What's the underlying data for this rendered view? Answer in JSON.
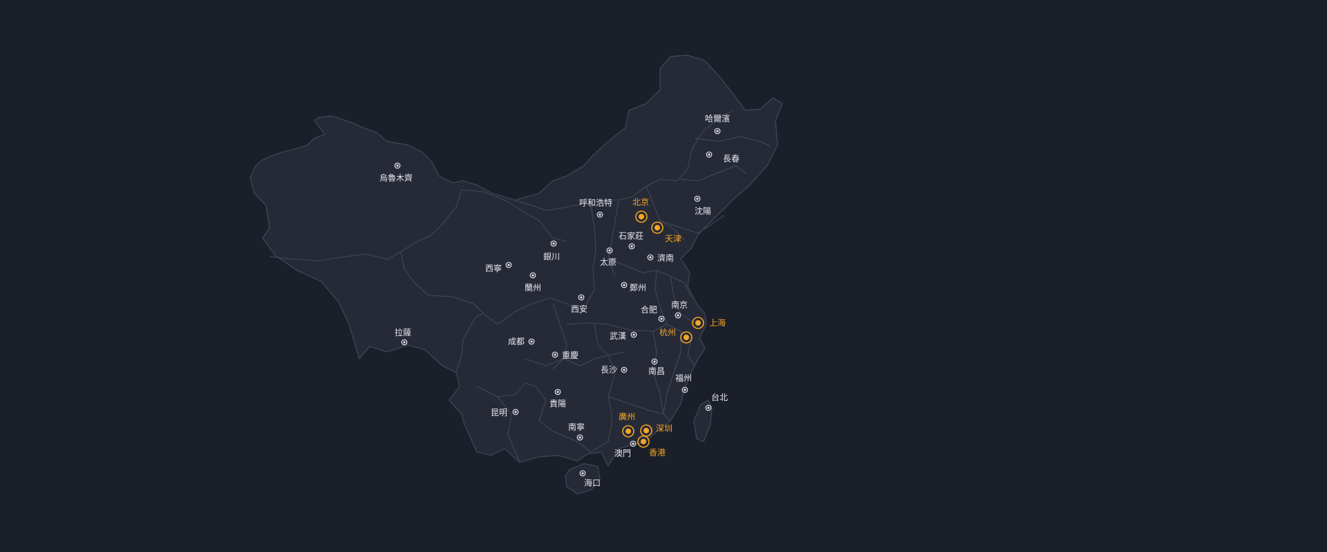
{
  "colors": {
    "background": "#1b1f2a",
    "land_fill": "#262a37",
    "border": "#3f4452",
    "city_label": "#e8e8ee",
    "highlight": "#f5a623"
  },
  "cities": [
    {
      "id": "harbin",
      "name": "哈爾濱",
      "highlight": false
    },
    {
      "id": "changchun",
      "name": "長春",
      "highlight": false
    },
    {
      "id": "shenyang",
      "name": "沈陽",
      "highlight": false
    },
    {
      "id": "urumqi",
      "name": "烏魯木齊",
      "highlight": false
    },
    {
      "id": "hohhot",
      "name": "呼和浩特",
      "highlight": false
    },
    {
      "id": "beijing",
      "name": "北京",
      "highlight": true
    },
    {
      "id": "tianjin",
      "name": "天津",
      "highlight": true
    },
    {
      "id": "shijiazhuang",
      "name": "石家莊",
      "highlight": false
    },
    {
      "id": "yinchuan",
      "name": "銀川",
      "highlight": false
    },
    {
      "id": "taiyuan",
      "name": "太原",
      "highlight": false
    },
    {
      "id": "jinan",
      "name": "濟南",
      "highlight": false
    },
    {
      "id": "xining",
      "name": "西寧",
      "highlight": false
    },
    {
      "id": "lanzhou",
      "name": "蘭州",
      "highlight": false
    },
    {
      "id": "zhengzhou",
      "name": "鄭州",
      "highlight": false
    },
    {
      "id": "xian",
      "name": "西安",
      "highlight": false
    },
    {
      "id": "nanjing",
      "name": "南京",
      "highlight": false
    },
    {
      "id": "hefei",
      "name": "合肥",
      "highlight": false
    },
    {
      "id": "shanghai",
      "name": "上海",
      "highlight": true
    },
    {
      "id": "lhasa",
      "name": "拉薩",
      "highlight": false
    },
    {
      "id": "hangzhou",
      "name": "杭州",
      "highlight": true
    },
    {
      "id": "chengdu",
      "name": "成都",
      "highlight": false
    },
    {
      "id": "wuhan",
      "name": "武漢",
      "highlight": false
    },
    {
      "id": "chongqing",
      "name": "重慶",
      "highlight": false
    },
    {
      "id": "changsha",
      "name": "長沙",
      "highlight": false
    },
    {
      "id": "nanchang",
      "name": "南昌",
      "highlight": false
    },
    {
      "id": "fuzhou",
      "name": "福州",
      "highlight": false
    },
    {
      "id": "guiyang",
      "name": "貴陽",
      "highlight": false
    },
    {
      "id": "taipei",
      "name": "台北",
      "highlight": false
    },
    {
      "id": "kunming",
      "name": "昆明",
      "highlight": false
    },
    {
      "id": "guangzhou",
      "name": "廣州",
      "highlight": true
    },
    {
      "id": "shenzhen",
      "name": "深圳",
      "highlight": true
    },
    {
      "id": "nanning",
      "name": "南寧",
      "highlight": false
    },
    {
      "id": "hongkong",
      "name": "香港",
      "highlight": true
    },
    {
      "id": "macau",
      "name": "澳門",
      "highlight": false
    },
    {
      "id": "haikou",
      "name": "海口",
      "highlight": false
    }
  ]
}
